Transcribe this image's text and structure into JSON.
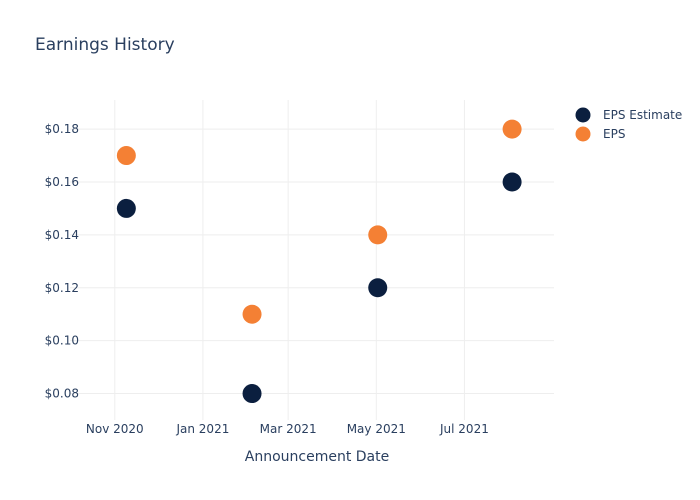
{
  "chart_data": {
    "type": "scatter",
    "title": "Earnings History",
    "xlabel": "Announcement Date",
    "ylabel": "",
    "x_ticks": [
      {
        "date": "2020-11-01",
        "label": "Nov 2020"
      },
      {
        "date": "2021-01-01",
        "label": "Jan 2021"
      },
      {
        "date": "2021-03-01",
        "label": "Mar 2021"
      },
      {
        "date": "2021-05-01",
        "label": "May 2021"
      },
      {
        "date": "2021-07-01",
        "label": "Jul 2021"
      }
    ],
    "xlim": [
      "2020-10-01",
      "2021-09-01"
    ],
    "y_ticks": [
      {
        "value": 0.08,
        "label": "$0.08"
      },
      {
        "value": 0.1,
        "label": "$0.10"
      },
      {
        "value": 0.12,
        "label": "$0.12"
      },
      {
        "value": 0.14,
        "label": "$0.14"
      },
      {
        "value": 0.16,
        "label": "$0.16"
      },
      {
        "value": 0.18,
        "label": "$0.18"
      }
    ],
    "ylim": [
      0.07,
      0.191
    ],
    "grid": true,
    "legend_position": "top-right",
    "series": [
      {
        "name": "EPS Estimate",
        "color": "#0b1f3f",
        "points": [
          {
            "x": "2020-11-09",
            "y": 0.15
          },
          {
            "x": "2021-02-04",
            "y": 0.08
          },
          {
            "x": "2021-05-02",
            "y": 0.12
          },
          {
            "x": "2021-08-03",
            "y": 0.16
          }
        ]
      },
      {
        "name": "EPS",
        "color": "#f48034",
        "points": [
          {
            "x": "2020-11-09",
            "y": 0.17
          },
          {
            "x": "2021-02-04",
            "y": 0.11
          },
          {
            "x": "2021-05-02",
            "y": 0.14
          },
          {
            "x": "2021-08-03",
            "y": 0.18
          }
        ]
      }
    ]
  }
}
